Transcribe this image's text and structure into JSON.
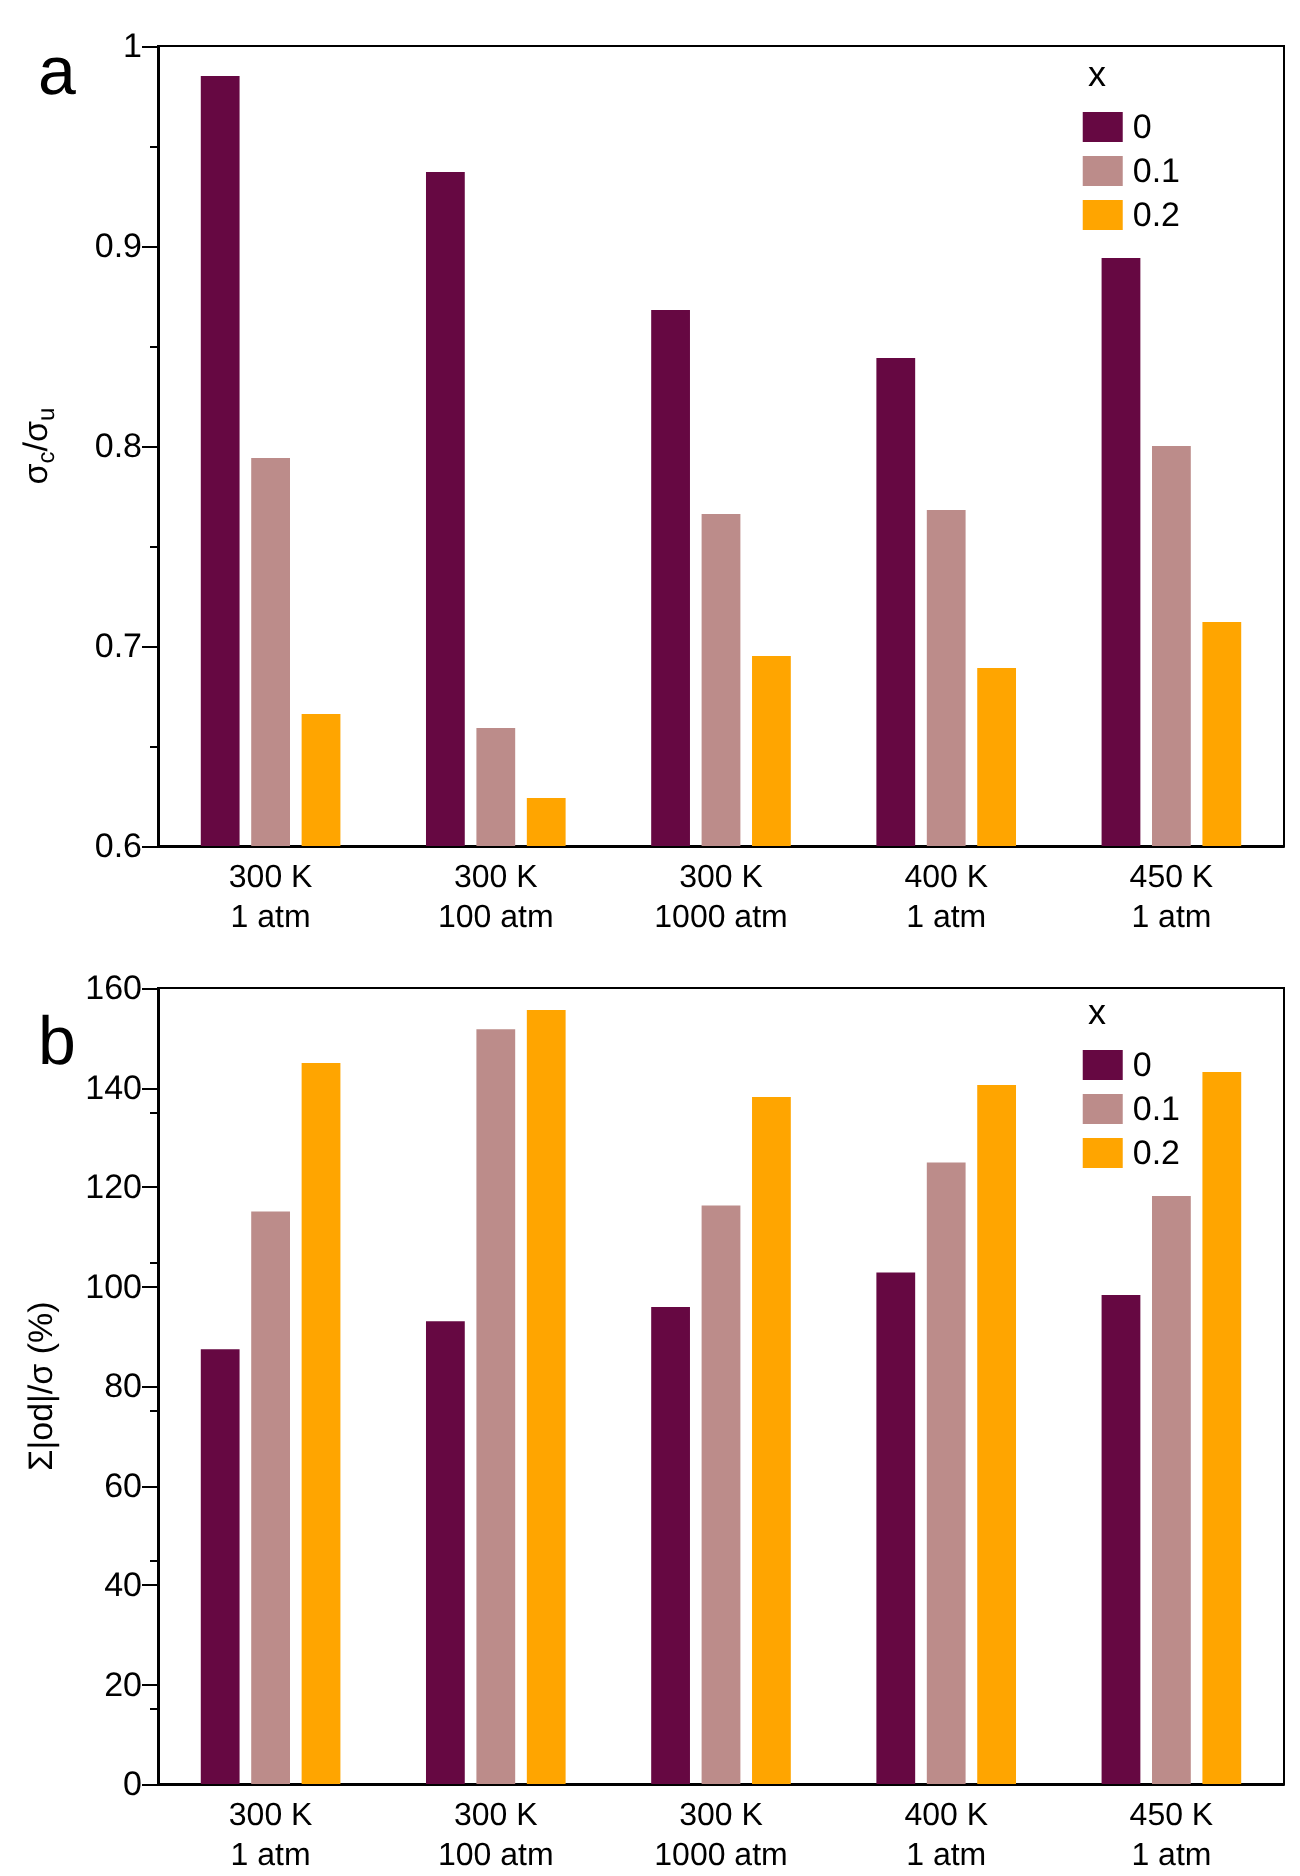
{
  "chart_data": [
    {
      "type": "bar",
      "title": "a",
      "ylabel": "σ$_{c}$/σ$_{u}$",
      "legend_title": "x",
      "legend": "top right",
      "grid": false,
      "categories": [
        "300 K\n1 atm",
        "300 K\n100 atm",
        "300 K\n1000 atm",
        "400 K\n1 atm",
        "450 K\n1 atm"
      ],
      "series": [
        {
          "name": "0",
          "color": "#660842",
          "values": [
            0.985,
            0.937,
            0.868,
            0.844,
            0.894
          ]
        },
        {
          "name": "0.1",
          "color": "#bc8c8a",
          "values": [
            0.794,
            0.659,
            0.766,
            0.768,
            0.8
          ]
        },
        {
          "name": "0.2",
          "color": "#ffa500",
          "values": [
            0.666,
            0.624,
            0.695,
            0.689,
            0.712
          ]
        }
      ],
      "ylim": [
        0.6,
        1
      ],
      "yticks": [
        0.6,
        0.7,
        0.8,
        0.9,
        1
      ]
    },
    {
      "type": "bar",
      "title": "b",
      "ylabel": "Σ|od|/σ (%)",
      "legend_title": "x",
      "legend": "top right",
      "grid": false,
      "categories": [
        "300 K\n1 atm",
        "300 K\n100 atm",
        "300 K\n1000 atm",
        "400 K\n1 atm",
        "450 K\n1 atm"
      ],
      "series": [
        {
          "name": "0",
          "color": "#660842",
          "values": [
            87.4,
            93.0,
            95.9,
            102.8,
            98.3
          ]
        },
        {
          "name": "0.1",
          "color": "#bc8c8a",
          "values": [
            115.1,
            151.7,
            116.3,
            124.9,
            118.2
          ]
        },
        {
          "name": "0.2",
          "color": "#ffa500",
          "values": [
            144.9,
            155.6,
            138.1,
            140.5,
            143.1
          ]
        }
      ],
      "ylim": [
        0,
        160
      ],
      "yticks": [
        0,
        20,
        40,
        60,
        80,
        100,
        120,
        140,
        160
      ]
    }
  ]
}
